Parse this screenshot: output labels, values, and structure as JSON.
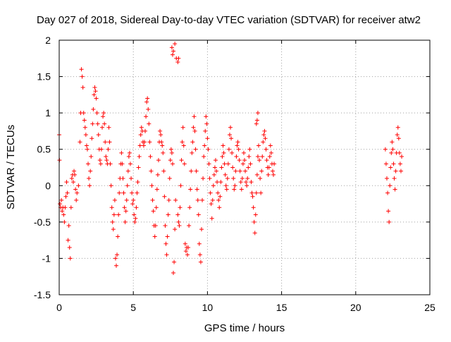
{
  "chart_data": {
    "type": "scatter",
    "title": "Day 027 of 2018, Sidereal Day-to-day VTEC variation (SDTVAR) for receiver atw2",
    "xlabel": "GPS time / hours",
    "ylabel": "SDTVAR / TECUs",
    "xlim": [
      0,
      25
    ],
    "ylim": [
      -1.5,
      2
    ],
    "x_ticks": [
      0,
      5,
      10,
      15,
      20,
      25
    ],
    "y_ticks": [
      -1.5,
      -1,
      -0.5,
      0,
      0.5,
      1,
      1.5,
      2
    ],
    "x_tick_labels": [
      "0",
      "5",
      "10",
      "15",
      "20",
      "25"
    ],
    "y_tick_labels": [
      "-1.5",
      "-1",
      "-0.5",
      "0",
      "0.5",
      "1",
      "1.5",
      "2"
    ],
    "grid": true,
    "legend": "none",
    "marker": "plus",
    "marker_color": "#ff0000",
    "series": [
      {
        "points": [
          [
            0.0,
            0.7
          ],
          [
            0.02,
            0.35
          ],
          [
            0.05,
            -0.25
          ],
          [
            0.1,
            -0.3
          ],
          [
            0.15,
            -0.2
          ],
          [
            0.2,
            -0.35
          ],
          [
            0.25,
            -0.3
          ],
          [
            0.3,
            -0.4
          ],
          [
            0.35,
            -0.5
          ],
          [
            0.4,
            -0.3
          ],
          [
            0.45,
            -0.15
          ],
          [
            0.5,
            0.05
          ],
          [
            0.55,
            -0.1
          ],
          [
            0.6,
            -0.75
          ],
          [
            0.65,
            -0.55
          ],
          [
            0.7,
            -0.85
          ],
          [
            0.75,
            -1.0
          ],
          [
            0.8,
            -0.3
          ],
          [
            0.85,
            0.1
          ],
          [
            0.9,
            0.15
          ],
          [
            0.95,
            0.05
          ],
          [
            1.0,
            0.2
          ],
          [
            1.05,
            0.15
          ],
          [
            1.1,
            -0.05
          ],
          [
            1.15,
            -0.2
          ],
          [
            1.2,
            -0.1
          ],
          [
            1.3,
            0.0
          ],
          [
            1.4,
            0.6
          ],
          [
            1.45,
            1.0
          ],
          [
            1.5,
            1.6
          ],
          [
            1.55,
            1.5
          ],
          [
            1.6,
            1.35
          ],
          [
            1.65,
            1.0
          ],
          [
            1.7,
            0.9
          ],
          [
            1.75,
            0.8
          ],
          [
            1.8,
            0.7
          ],
          [
            1.85,
            0.55
          ],
          [
            1.9,
            0.5
          ],
          [
            1.95,
            0.3
          ],
          [
            2.0,
            0.1
          ],
          [
            2.05,
            0.0
          ],
          [
            2.1,
            0.2
          ],
          [
            2.15,
            0.4
          ],
          [
            2.2,
            0.65
          ],
          [
            2.25,
            0.85
          ],
          [
            2.3,
            1.05
          ],
          [
            2.35,
            1.25
          ],
          [
            2.4,
            1.35
          ],
          [
            2.45,
            1.3
          ],
          [
            2.5,
            1.2
          ],
          [
            2.55,
            1.0
          ],
          [
            2.6,
            0.85
          ],
          [
            2.65,
            0.7
          ],
          [
            2.7,
            0.5
          ],
          [
            2.75,
            0.35
          ],
          [
            2.8,
            0.3
          ],
          [
            2.85,
            0.5
          ],
          [
            2.9,
            0.8
          ],
          [
            2.95,
            0.95
          ],
          [
            3.0,
            1.0
          ],
          [
            3.05,
            0.85
          ],
          [
            3.1,
            0.6
          ],
          [
            3.15,
            0.4
          ],
          [
            3.2,
            0.35
          ],
          [
            3.25,
            0.3
          ],
          [
            3.3,
            0.5
          ],
          [
            3.35,
            0.8
          ],
          [
            3.4,
            0.6
          ],
          [
            3.45,
            0.3
          ],
          [
            3.5,
            0.0
          ],
          [
            3.55,
            -0.3
          ],
          [
            3.6,
            -0.5
          ],
          [
            3.65,
            -0.6
          ],
          [
            3.7,
            -0.4
          ],
          [
            3.75,
            -0.2
          ],
          [
            3.8,
            -1.0
          ],
          [
            3.85,
            -1.1
          ],
          [
            3.9,
            -0.95
          ],
          [
            3.95,
            -0.7
          ],
          [
            4.0,
            -0.4
          ],
          [
            4.05,
            -0.1
          ],
          [
            4.1,
            0.1
          ],
          [
            4.15,
            0.3
          ],
          [
            4.2,
            0.45
          ],
          [
            4.25,
            0.3
          ],
          [
            4.3,
            0.1
          ],
          [
            4.35,
            -0.1
          ],
          [
            4.4,
            -0.3
          ],
          [
            4.45,
            -0.5
          ],
          [
            4.5,
            -0.35
          ],
          [
            4.55,
            -0.2
          ],
          [
            4.6,
            0.0
          ],
          [
            4.65,
            0.2
          ],
          [
            4.7,
            0.4
          ],
          [
            4.75,
            0.45
          ],
          [
            4.8,
            0.3
          ],
          [
            4.85,
            0.1
          ],
          [
            4.9,
            -0.1
          ],
          [
            4.95,
            -0.25
          ],
          [
            5.0,
            -0.2
          ],
          [
            5.05,
            -0.4
          ],
          [
            5.1,
            -0.5
          ],
          [
            5.15,
            -0.45
          ],
          [
            5.2,
            -0.3
          ],
          [
            5.25,
            -0.1
          ],
          [
            5.3,
            0.05
          ],
          [
            5.35,
            0.25
          ],
          [
            5.4,
            0.4
          ],
          [
            5.45,
            0.55
          ],
          [
            5.5,
            0.7
          ],
          [
            5.55,
            0.8
          ],
          [
            5.6,
            0.75
          ],
          [
            5.65,
            0.6
          ],
          [
            5.7,
            0.55
          ],
          [
            5.75,
            0.6
          ],
          [
            5.8,
            0.75
          ],
          [
            5.85,
            0.95
          ],
          [
            5.9,
            1.15
          ],
          [
            5.95,
            1.2
          ],
          [
            6.0,
            1.05
          ],
          [
            6.05,
            0.85
          ],
          [
            6.1,
            0.6
          ],
          [
            6.15,
            0.4
          ],
          [
            6.2,
            0.2
          ],
          [
            6.25,
            0.0
          ],
          [
            6.3,
            -0.2
          ],
          [
            6.35,
            -0.35
          ],
          [
            6.4,
            -0.55
          ],
          [
            6.45,
            -0.7
          ],
          [
            6.5,
            -0.55
          ],
          [
            6.55,
            -0.3
          ],
          [
            6.6,
            -0.05
          ],
          [
            6.65,
            0.15
          ],
          [
            6.7,
            0.35
          ],
          [
            6.75,
            0.6
          ],
          [
            6.8,
            0.75
          ],
          [
            6.85,
            0.7
          ],
          [
            6.9,
            0.6
          ],
          [
            6.95,
            0.55
          ],
          [
            7.0,
            0.45
          ],
          [
            7.05,
            0.2
          ],
          [
            7.1,
            -0.15
          ],
          [
            7.15,
            -0.55
          ],
          [
            7.2,
            -0.8
          ],
          [
            7.25,
            -0.95
          ],
          [
            7.3,
            -0.7
          ],
          [
            7.35,
            -0.4
          ],
          [
            7.4,
            -0.2
          ],
          [
            7.45,
            0.1
          ],
          [
            7.5,
            0.35
          ],
          [
            7.55,
            0.5
          ],
          [
            7.6,
            0.45
          ],
          [
            7.65,
            0.3
          ],
          [
            7.7,
            -1.2
          ],
          [
            7.75,
            -1.05
          ],
          [
            7.8,
            -0.6
          ],
          [
            7.85,
            -0.2
          ],
          [
            7.6,
            1.9
          ],
          [
            7.65,
            1.8
          ],
          [
            7.7,
            1.85
          ],
          [
            7.8,
            1.95
          ],
          [
            7.9,
            1.75
          ],
          [
            8.0,
            1.7
          ],
          [
            8.05,
            1.75
          ],
          [
            8.0,
            -0.4
          ],
          [
            8.05,
            -0.5
          ],
          [
            8.1,
            -0.55
          ],
          [
            8.15,
            -0.3
          ],
          [
            8.2,
            0.0
          ],
          [
            8.25,
            0.35
          ],
          [
            8.3,
            0.6
          ],
          [
            8.35,
            0.8
          ],
          [
            8.4,
            0.55
          ],
          [
            8.45,
            0.3
          ],
          [
            8.5,
            -0.8
          ],
          [
            8.55,
            -0.9
          ],
          [
            8.6,
            -0.85
          ],
          [
            8.65,
            -0.95
          ],
          [
            8.7,
            -0.85
          ],
          [
            8.75,
            -0.55
          ],
          [
            8.8,
            -0.3
          ],
          [
            8.85,
            -0.05
          ],
          [
            8.9,
            0.2
          ],
          [
            8.95,
            0.45
          ],
          [
            9.0,
            0.6
          ],
          [
            9.05,
            0.8
          ],
          [
            9.1,
            0.95
          ],
          [
            9.15,
            0.75
          ],
          [
            9.2,
            0.5
          ],
          [
            9.25,
            0.2
          ],
          [
            9.3,
            -0.05
          ],
          [
            9.35,
            -0.2
          ],
          [
            9.4,
            -0.4
          ],
          [
            9.45,
            -0.8
          ],
          [
            9.5,
            -0.95
          ],
          [
            9.55,
            -1.05
          ],
          [
            9.6,
            -0.6
          ],
          [
            9.65,
            -0.2
          ],
          [
            9.7,
            0.1
          ],
          [
            9.75,
            0.4
          ],
          [
            9.8,
            0.55
          ],
          [
            9.85,
            0.75
          ],
          [
            9.9,
            0.95
          ],
          [
            9.95,
            0.85
          ],
          [
            10.0,
            0.65
          ],
          [
            10.05,
            0.5
          ],
          [
            10.1,
            0.3
          ],
          [
            10.15,
            0.1
          ],
          [
            10.2,
            -0.1
          ],
          [
            10.25,
            -0.25
          ],
          [
            10.3,
            -0.45
          ],
          [
            10.35,
            -0.2
          ],
          [
            10.4,
            0.0
          ],
          [
            10.45,
            0.15
          ],
          [
            10.5,
            0.25
          ],
          [
            10.55,
            0.35
          ],
          [
            10.6,
            0.2
          ],
          [
            10.65,
            0.05
          ],
          [
            10.7,
            -0.1
          ],
          [
            10.75,
            -0.2
          ],
          [
            10.8,
            -0.3
          ],
          [
            10.85,
            -0.15
          ],
          [
            10.9,
            0.05
          ],
          [
            10.95,
            0.25
          ],
          [
            11.0,
            0.4
          ],
          [
            11.05,
            0.55
          ],
          [
            11.1,
            0.45
          ],
          [
            11.15,
            0.3
          ],
          [
            11.2,
            0.15
          ],
          [
            11.25,
            0.0
          ],
          [
            11.3,
            -0.05
          ],
          [
            11.35,
            0.1
          ],
          [
            11.4,
            0.3
          ],
          [
            11.45,
            0.5
          ],
          [
            11.5,
            0.7
          ],
          [
            11.55,
            0.8
          ],
          [
            11.6,
            0.65
          ],
          [
            11.65,
            0.45
          ],
          [
            11.7,
            0.25
          ],
          [
            11.75,
            0.1
          ],
          [
            11.8,
            -0.05
          ],
          [
            11.85,
            0.0
          ],
          [
            11.9,
            0.2
          ],
          [
            11.95,
            0.4
          ],
          [
            12.0,
            0.55
          ],
          [
            12.05,
            0.6
          ],
          [
            12.1,
            0.5
          ],
          [
            12.15,
            0.35
          ],
          [
            12.2,
            0.2
          ],
          [
            12.25,
            0.05
          ],
          [
            12.3,
            -0.05
          ],
          [
            12.35,
            0.1
          ],
          [
            12.4,
            0.3
          ],
          [
            12.45,
            0.45
          ],
          [
            12.5,
            0.35
          ],
          [
            12.55,
            0.2
          ],
          [
            12.6,
            0.05
          ],
          [
            12.65,
            0.0
          ],
          [
            12.7,
            0.1
          ],
          [
            12.75,
            0.25
          ],
          [
            12.8,
            0.4
          ],
          [
            12.85,
            0.5
          ],
          [
            12.9,
            0.3
          ],
          [
            12.95,
            0.05
          ],
          [
            13.0,
            -0.1
          ],
          [
            13.05,
            -0.15
          ],
          [
            13.1,
            -0.3
          ],
          [
            13.15,
            -0.5
          ],
          [
            13.2,
            -0.65
          ],
          [
            13.25,
            -0.4
          ],
          [
            13.3,
            -0.1
          ],
          [
            13.35,
            0.15
          ],
          [
            13.4,
            0.4
          ],
          [
            13.45,
            0.55
          ],
          [
            13.5,
            0.35
          ],
          [
            13.55,
            0.1
          ],
          [
            13.6,
            -0.1
          ],
          [
            13.4,
            1.0
          ],
          [
            13.35,
            0.9
          ],
          [
            13.3,
            0.85
          ],
          [
            13.65,
            0.2
          ],
          [
            13.7,
            0.4
          ],
          [
            13.75,
            0.6
          ],
          [
            13.8,
            0.7
          ],
          [
            13.85,
            0.75
          ],
          [
            13.9,
            0.65
          ],
          [
            13.95,
            0.5
          ],
          [
            14.0,
            0.35
          ],
          [
            14.05,
            0.25
          ],
          [
            14.1,
            0.15
          ],
          [
            14.15,
            0.25
          ],
          [
            14.2,
            0.4
          ],
          [
            14.25,
            0.55
          ],
          [
            14.3,
            0.45
          ],
          [
            14.35,
            0.3
          ],
          [
            14.4,
            0.2
          ],
          [
            14.45,
            0.15
          ],
          [
            14.5,
            0.3
          ],
          [
            22.0,
            0.5
          ],
          [
            22.05,
            0.3
          ],
          [
            22.1,
            0.1
          ],
          [
            22.15,
            -0.1
          ],
          [
            22.2,
            -0.35
          ],
          [
            22.25,
            -0.5
          ],
          [
            22.3,
            0.0
          ],
          [
            22.35,
            0.25
          ],
          [
            22.4,
            0.45
          ],
          [
            22.45,
            0.6
          ],
          [
            22.5,
            0.5
          ],
          [
            22.55,
            0.3
          ],
          [
            22.6,
            0.1
          ],
          [
            22.65,
            -0.05
          ],
          [
            22.7,
            0.2
          ],
          [
            22.75,
            0.45
          ],
          [
            22.8,
            0.7
          ],
          [
            22.85,
            0.8
          ],
          [
            22.9,
            0.65
          ],
          [
            22.95,
            0.45
          ],
          [
            23.0,
            0.3
          ],
          [
            23.05,
            0.2
          ],
          [
            23.1,
            0.4
          ]
        ]
      }
    ]
  }
}
